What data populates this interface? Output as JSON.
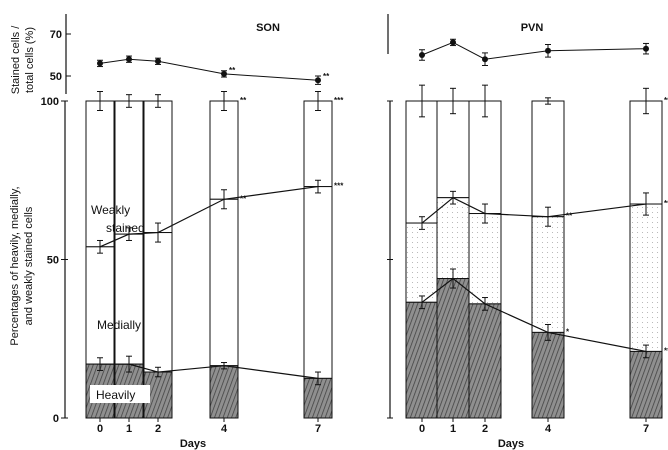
{
  "chart_data": [
    {
      "type": "line",
      "panel": "top",
      "title": "SON",
      "ylabel": [
        "Stained cells /",
        "total cells (%)"
      ],
      "yticks": [
        50,
        70
      ],
      "x": [
        0,
        1,
        2,
        4,
        7
      ],
      "values": [
        56,
        58,
        57,
        51,
        48
      ],
      "errors": [
        1.5,
        1.5,
        1.5,
        1.5,
        2
      ],
      "significance": [
        "",
        "",
        "",
        "**",
        "**"
      ]
    },
    {
      "type": "line",
      "panel": "top",
      "title": "PVN",
      "x": [
        0,
        1,
        2,
        4,
        7
      ],
      "values": [
        60,
        66,
        58,
        62,
        63
      ],
      "errors": [
        2.5,
        1.5,
        3,
        3,
        2.5
      ],
      "significance": [
        "",
        "",
        "",
        "",
        ""
      ]
    },
    {
      "type": "bar",
      "panel": "bottom",
      "title": "SON",
      "xlabel": "Days",
      "ylabel": [
        "Percentages of heavily, medially,",
        "and weakly stained cells"
      ],
      "categories": [
        "0",
        "1",
        "2",
        "4",
        "7"
      ],
      "yticks": [
        0,
        50,
        100
      ],
      "ylim": [
        0,
        100
      ],
      "annotations": [
        "Weakly",
        "stained",
        "Medially",
        "Heavily"
      ],
      "series": [
        {
          "values": [
            17,
            17,
            14.5,
            16.5,
            12.5
          ],
          "errors": [
            2,
            2.5,
            1.5,
            1,
            2
          ]
        },
        {
          "values": [
            54,
            58,
            58.5,
            69,
            73
          ],
          "errors": [
            2,
            2,
            3,
            3,
            2
          ]
        },
        {
          "values": [
            100,
            100,
            100,
            100,
            100
          ],
          "errors": [
            3,
            2,
            2,
            3,
            3
          ]
        }
      ],
      "significance": {
        "heavy": [
          "",
          "",
          "",
          "",
          ""
        ],
        "medium": [
          "",
          "",
          "",
          "**",
          "***"
        ],
        "total": [
          "",
          "",
          "",
          "**",
          "***"
        ]
      }
    },
    {
      "type": "bar",
      "panel": "bottom",
      "title": "PVN",
      "xlabel": "Days",
      "categories": [
        "0",
        "1",
        "2",
        "4",
        "7"
      ],
      "ylim": [
        0,
        100
      ],
      "series": [
        {
          "values": [
            36.5,
            44,
            36,
            27,
            21
          ],
          "errors": [
            2,
            3,
            2,
            2.5,
            2
          ]
        },
        {
          "values": [
            61.5,
            69.5,
            64.5,
            63.5,
            67.5
          ],
          "errors": [
            2,
            2,
            3,
            3,
            3.5
          ]
        },
        {
          "values": [
            100,
            100,
            100,
            100,
            100
          ],
          "errors": [
            5,
            4,
            5,
            1,
            4
          ]
        }
      ],
      "significance": {
        "heavy": [
          "",
          "",
          "",
          "*",
          "**"
        ],
        "medium": [
          "",
          "",
          "",
          "**",
          "***"
        ],
        "total": [
          "",
          "",
          "",
          "",
          "***"
        ]
      }
    }
  ]
}
